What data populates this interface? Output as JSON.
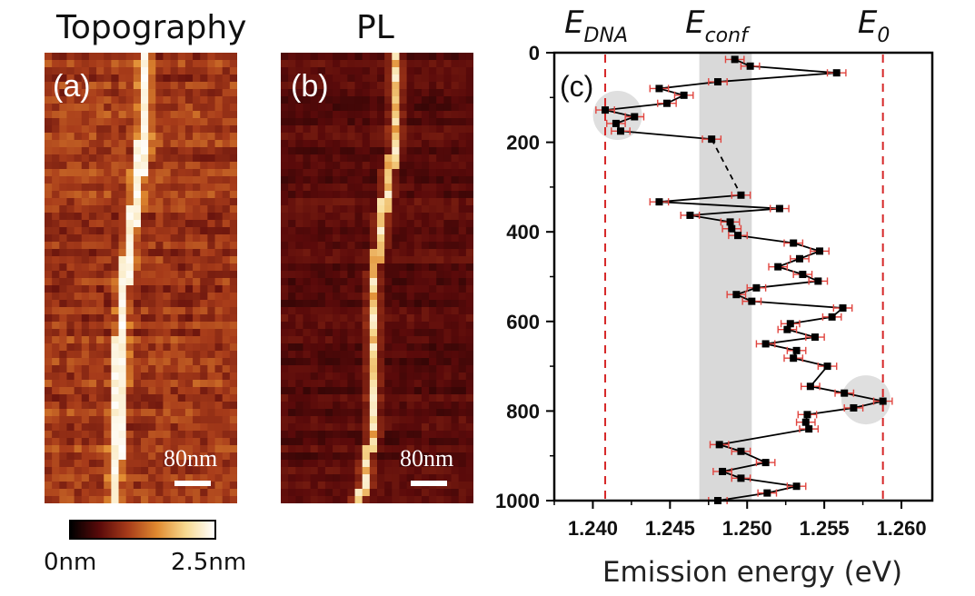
{
  "panels": {
    "topography": {
      "title": "Topography",
      "letter": "(a)",
      "scale_label": "80nm"
    },
    "pl": {
      "title": "PL",
      "letter": "(b)",
      "scale_label": "80nm"
    },
    "chart_letter": "(c)"
  },
  "colorbar": {
    "min_label": "0nm",
    "max_label": "2.5nm",
    "colors": [
      "#000000",
      "#5a0a0a",
      "#a83c1a",
      "#e08a30",
      "#f7d98f",
      "#ffffff"
    ]
  },
  "chart_data": {
    "type": "scatter",
    "title": "",
    "xlabel": "Emission energy (eV)",
    "ylabel": "",
    "xlim": [
      1.2375,
      1.262
    ],
    "ylim": [
      1000,
      0
    ],
    "x_ticks": [
      "1.240",
      "1.245",
      "1.250",
      "1.255",
      "1.260"
    ],
    "x_tick_values": [
      1.24,
      1.245,
      1.25,
      1.255,
      1.26
    ],
    "y_ticks": [
      "0",
      "200",
      "400",
      "600",
      "800",
      "1000"
    ],
    "y_tick_values": [
      0,
      200,
      400,
      600,
      800,
      1000
    ],
    "reference_lines": [
      {
        "label": "E",
        "sub": "DNA",
        "x": 1.2408,
        "color": "#d62728"
      },
      {
        "label": "E",
        "sub": "0",
        "x": 1.2588,
        "color": "#d62728"
      }
    ],
    "band": {
      "label": "E",
      "sub": "conf",
      "x_start": 1.2469,
      "x_end": 1.2503,
      "color": "#d9d9d9"
    },
    "highlight_circles": [
      {
        "x": 1.2416,
        "y": 140
      },
      {
        "x": 1.2577,
        "y": 775
      }
    ],
    "dashed_segment": {
      "from_index": 9,
      "to_index": 10
    },
    "error_bar": 0.0006,
    "points": [
      {
        "x": 1.2492,
        "y": 15
      },
      {
        "x": 1.2502,
        "y": 30
      },
      {
        "x": 1.2558,
        "y": 45
      },
      {
        "x": 1.2481,
        "y": 65
      },
      {
        "x": 1.2443,
        "y": 80
      },
      {
        "x": 1.2459,
        "y": 95
      },
      {
        "x": 1.2448,
        "y": 113
      },
      {
        "x": 1.2408,
        "y": 128
      },
      {
        "x": 1.2427,
        "y": 143
      },
      {
        "x": 1.2415,
        "y": 158
      },
      {
        "x": 1.2418,
        "y": 175
      },
      {
        "x": 1.2477,
        "y": 193
      },
      {
        "x": 1.2496,
        "y": 318
      },
      {
        "x": 1.2443,
        "y": 333
      },
      {
        "x": 1.2521,
        "y": 348
      },
      {
        "x": 1.2463,
        "y": 363
      },
      {
        "x": 1.2489,
        "y": 378
      },
      {
        "x": 1.249,
        "y": 393
      },
      {
        "x": 1.2494,
        "y": 408
      },
      {
        "x": 1.253,
        "y": 425
      },
      {
        "x": 1.2547,
        "y": 443
      },
      {
        "x": 1.2534,
        "y": 460
      },
      {
        "x": 1.252,
        "y": 478
      },
      {
        "x": 1.2536,
        "y": 495
      },
      {
        "x": 1.2546,
        "y": 510
      },
      {
        "x": 1.2506,
        "y": 525
      },
      {
        "x": 1.2493,
        "y": 540
      },
      {
        "x": 1.2503,
        "y": 555
      },
      {
        "x": 1.2562,
        "y": 570
      },
      {
        "x": 1.2555,
        "y": 590
      },
      {
        "x": 1.2528,
        "y": 605
      },
      {
        "x": 1.2526,
        "y": 618
      },
      {
        "x": 1.2544,
        "y": 635
      },
      {
        "x": 1.2512,
        "y": 650
      },
      {
        "x": 1.2532,
        "y": 665
      },
      {
        "x": 1.253,
        "y": 682
      },
      {
        "x": 1.2552,
        "y": 700
      },
      {
        "x": 1.2541,
        "y": 745
      },
      {
        "x": 1.2563,
        "y": 760
      },
      {
        "x": 1.2588,
        "y": 778
      },
      {
        "x": 1.2569,
        "y": 793
      },
      {
        "x": 1.2539,
        "y": 808
      },
      {
        "x": 1.2538,
        "y": 825
      },
      {
        "x": 1.254,
        "y": 840
      },
      {
        "x": 1.2482,
        "y": 875
      },
      {
        "x": 1.2496,
        "y": 890
      },
      {
        "x": 1.2512,
        "y": 915
      },
      {
        "x": 1.2484,
        "y": 935
      },
      {
        "x": 1.2496,
        "y": 950
      },
      {
        "x": 1.2532,
        "y": 968
      },
      {
        "x": 1.2513,
        "y": 983
      },
      {
        "x": 1.2481,
        "y": 1000
      }
    ]
  }
}
